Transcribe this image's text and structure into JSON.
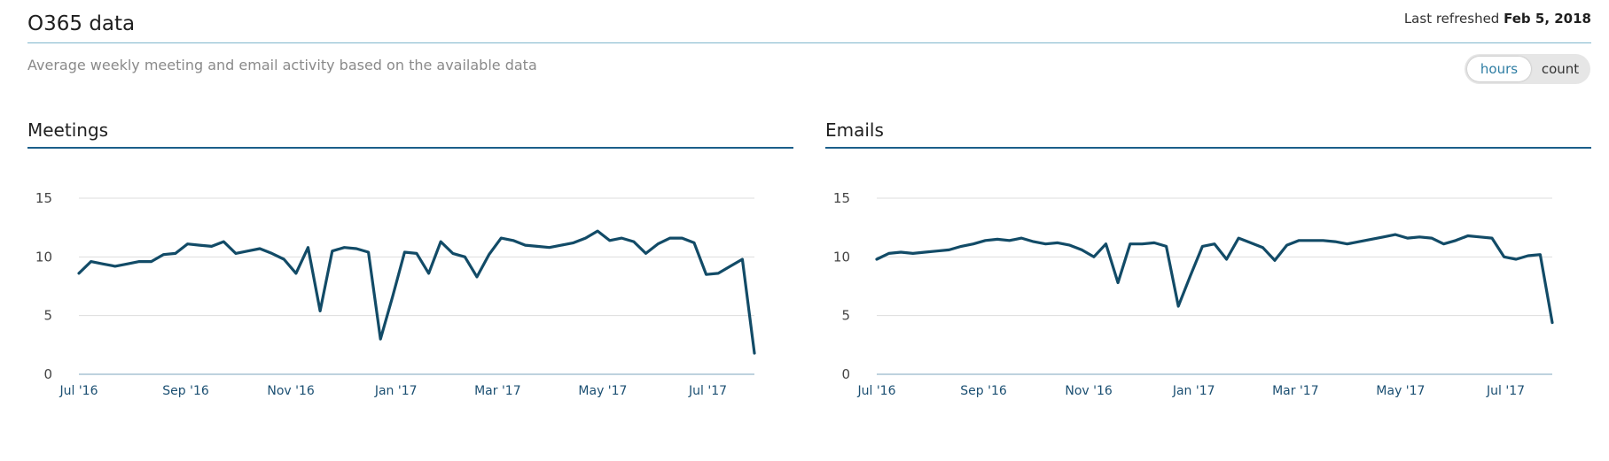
{
  "header": {
    "title": "O365 data",
    "refreshed_label": "Last refreshed",
    "refreshed_date": "Feb 5, 2018"
  },
  "subtitle": "Average weekly meeting and email activity based on the available data",
  "toggle": {
    "option_hours": "hours",
    "option_count": "count",
    "selected": "hours"
  },
  "colors": {
    "line": "#124b67",
    "grid": "#dddddd",
    "rule": "#1b5f8a",
    "accent": "#2e7da3"
  },
  "chart_data": [
    {
      "type": "line",
      "title": "Meetings",
      "ylim": [
        0,
        15
      ],
      "yticks": [
        "0",
        "5",
        "10",
        "15"
      ],
      "xticks": [
        "Jul '16",
        "Sep '16",
        "Nov '16",
        "Jan '17",
        "Mar '17",
        "May '17",
        "Jul '17"
      ],
      "grid": true,
      "x_start": "2016-07-01",
      "x_step_days": 7,
      "series": [
        {
          "values": [
            8.6,
            9.6,
            9.4,
            9.2,
            9.4,
            9.6,
            9.6,
            10.2,
            10.3,
            11.1,
            11.0,
            10.9,
            11.3,
            10.3,
            10.5,
            10.7,
            10.3,
            9.8,
            8.6,
            10.8,
            5.4,
            10.5,
            10.8,
            10.7,
            10.4,
            3.0,
            6.6,
            10.4,
            10.3,
            8.6,
            11.3,
            10.3,
            10.0,
            8.3,
            10.2,
            11.6,
            11.4,
            11.0,
            10.9,
            10.8,
            11.0,
            11.2,
            11.6,
            12.2,
            11.4,
            11.6,
            11.3,
            10.3,
            11.1,
            11.6,
            11.6,
            11.2,
            8.5,
            8.6,
            9.2,
            9.8,
            1.8
          ]
        }
      ]
    },
    {
      "type": "line",
      "title": "Emails",
      "ylim": [
        0,
        15
      ],
      "yticks": [
        "0",
        "5",
        "10",
        "15"
      ],
      "xticks": [
        "Jul '16",
        "Sep '16",
        "Nov '16",
        "Jan '17",
        "Mar '17",
        "May '17",
        "Jul '17"
      ],
      "grid": true,
      "x_start": "2016-07-01",
      "x_step_days": 7,
      "series": [
        {
          "values": [
            9.8,
            10.3,
            10.4,
            10.3,
            10.4,
            10.5,
            10.6,
            10.9,
            11.1,
            11.4,
            11.5,
            11.4,
            11.6,
            11.3,
            11.1,
            11.2,
            11.0,
            10.6,
            10.0,
            11.1,
            7.8,
            11.1,
            11.1,
            11.2,
            10.9,
            5.8,
            8.4,
            10.9,
            11.1,
            9.8,
            11.6,
            11.2,
            10.8,
            9.7,
            11.0,
            11.4,
            11.4,
            11.4,
            11.3,
            11.1,
            11.3,
            11.5,
            11.7,
            11.9,
            11.6,
            11.7,
            11.6,
            11.1,
            11.4,
            11.8,
            11.7,
            11.6,
            10.0,
            9.8,
            10.1,
            10.2,
            4.4
          ]
        }
      ]
    }
  ]
}
